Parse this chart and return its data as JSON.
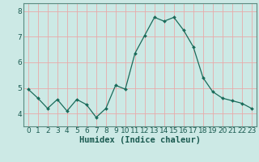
{
  "x": [
    0,
    1,
    2,
    3,
    4,
    5,
    6,
    7,
    8,
    9,
    10,
    11,
    12,
    13,
    14,
    15,
    16,
    17,
    18,
    19,
    20,
    21,
    22,
    23
  ],
  "y": [
    4.95,
    4.6,
    4.2,
    4.55,
    4.1,
    4.55,
    4.35,
    3.85,
    4.2,
    5.1,
    4.95,
    6.35,
    7.05,
    7.75,
    7.6,
    7.75,
    7.25,
    6.6,
    5.4,
    4.85,
    4.6,
    4.5,
    4.4,
    4.2
  ],
  "line_color": "#1a6b5a",
  "marker": "D",
  "marker_size": 2.0,
  "bg_color": "#cce9e5",
  "grid_color": "#e8aaaa",
  "spine_color": "#5a8a80",
  "xlabel": "Humidex (Indice chaleur)",
  "xlim": [
    -0.5,
    23.5
  ],
  "ylim": [
    3.5,
    8.3
  ],
  "yticks": [
    4,
    5,
    6,
    7,
    8
  ],
  "xticks": [
    0,
    1,
    2,
    3,
    4,
    5,
    6,
    7,
    8,
    9,
    10,
    11,
    12,
    13,
    14,
    15,
    16,
    17,
    18,
    19,
    20,
    21,
    22,
    23
  ],
  "xlabel_fontsize": 7.5,
  "tick_fontsize": 6.5,
  "tick_color": "#1a5a50"
}
